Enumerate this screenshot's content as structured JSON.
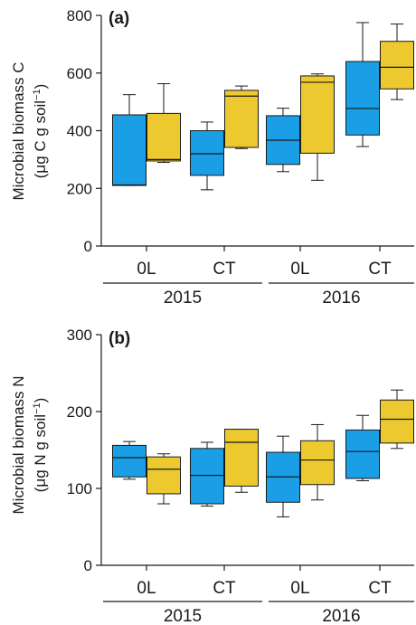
{
  "colors": {
    "blue": "#1a9ee6",
    "yellow": "#ecc92e",
    "axis": "#1a1a1a"
  },
  "chart_data": [
    {
      "type": "box",
      "panel_label": "(a)",
      "ylabel": "Microbial biomass C",
      "yunit_main": "(μg C g soil",
      "yunit_sup": "−1",
      "yunit_close": ")",
      "ylim": [
        0,
        800
      ],
      "yticks": [
        0,
        200,
        400,
        600,
        800
      ],
      "categories": [
        "0L",
        "CT",
        "0L",
        "CT"
      ],
      "years": [
        "2015",
        "2016"
      ],
      "groups": [
        {
          "category": "0L",
          "year": "2015",
          "boxes": [
            {
              "color": "blue",
              "min": 210,
              "q1": 210,
              "median": 212,
              "q3": 455,
              "max": 525
            },
            {
              "color": "yellow",
              "min": 290,
              "q1": 295,
              "median": 300,
              "q3": 460,
              "max": 563
            }
          ]
        },
        {
          "category": "CT",
          "year": "2015",
          "boxes": [
            {
              "color": "blue",
              "min": 195,
              "q1": 245,
              "median": 320,
              "q3": 400,
              "max": 430
            },
            {
              "color": "yellow",
              "min": 338,
              "q1": 342,
              "median": 520,
              "q3": 540,
              "max": 555
            }
          ]
        },
        {
          "category": "0L",
          "year": "2016",
          "boxes": [
            {
              "color": "blue",
              "min": 258,
              "q1": 283,
              "median": 367,
              "q3": 452,
              "max": 478
            },
            {
              "color": "yellow",
              "min": 228,
              "q1": 322,
              "median": 568,
              "q3": 590,
              "max": 597
            }
          ]
        },
        {
          "category": "CT",
          "year": "2016",
          "boxes": [
            {
              "color": "blue",
              "min": 345,
              "q1": 385,
              "median": 477,
              "q3": 640,
              "max": 775
            },
            {
              "color": "yellow",
              "min": 508,
              "q1": 545,
              "median": 620,
              "q3": 710,
              "max": 770
            }
          ]
        }
      ]
    },
    {
      "type": "box",
      "panel_label": "(b)",
      "ylabel": "Microbial biomass N",
      "yunit_main": "(μg N g soil",
      "yunit_sup": "−1",
      "yunit_close": ")",
      "ylim": [
        0,
        300
      ],
      "yticks": [
        0,
        100,
        200,
        300
      ],
      "categories": [
        "0L",
        "CT",
        "0L",
        "CT"
      ],
      "years": [
        "2015",
        "2016"
      ],
      "groups": [
        {
          "category": "0L",
          "year": "2015",
          "boxes": [
            {
              "color": "blue",
              "min": 112,
              "q1": 115,
              "median": 140,
              "q3": 156,
              "max": 161
            },
            {
              "color": "yellow",
              "min": 80,
              "q1": 93,
              "median": 125,
              "q3": 141,
              "max": 145
            }
          ]
        },
        {
          "category": "CT",
          "year": "2015",
          "boxes": [
            {
              "color": "blue",
              "min": 77,
              "q1": 80,
              "median": 117,
              "q3": 152,
              "max": 160
            },
            {
              "color": "yellow",
              "min": 95,
              "q1": 103,
              "median": 160,
              "q3": 177,
              "max": 177
            }
          ]
        },
        {
          "category": "0L",
          "year": "2016",
          "boxes": [
            {
              "color": "blue",
              "min": 63,
              "q1": 82,
              "median": 115,
              "q3": 147,
              "max": 168
            },
            {
              "color": "yellow",
              "min": 85,
              "q1": 105,
              "median": 137,
              "q3": 162,
              "max": 183
            }
          ]
        },
        {
          "category": "CT",
          "year": "2016",
          "boxes": [
            {
              "color": "blue",
              "min": 110,
              "q1": 113,
              "median": 148,
              "q3": 176,
              "max": 195
            },
            {
              "color": "yellow",
              "min": 152,
              "q1": 159,
              "median": 190,
              "q3": 215,
              "max": 228
            }
          ]
        }
      ]
    }
  ]
}
